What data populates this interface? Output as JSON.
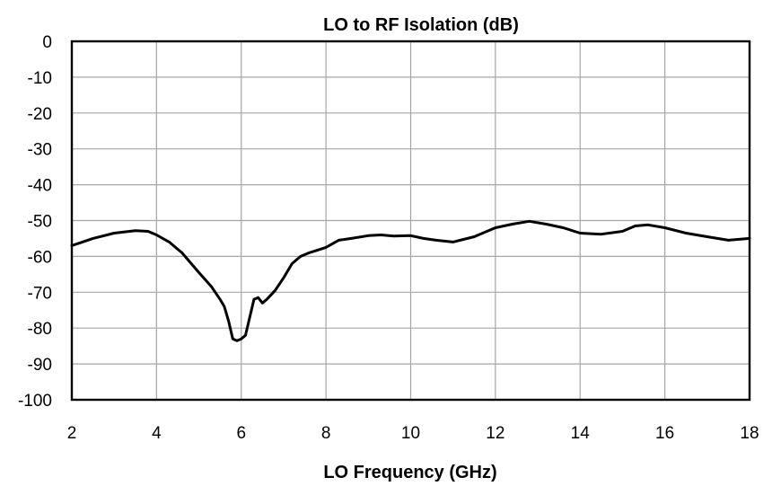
{
  "chart_data": {
    "type": "line",
    "title": "LO to RF Isolation  (dB)",
    "xlabel": "LO Frequency  (GHz)",
    "ylabel": "",
    "xlim": [
      2,
      18
    ],
    "ylim": [
      -100,
      0
    ],
    "xticks": [
      "2",
      "4",
      "6",
      "8",
      "10",
      "12",
      "14",
      "16",
      "18"
    ],
    "yticks": [
      "0",
      "-10",
      "-20",
      "-30",
      "-40",
      "-50",
      "-60",
      "-70",
      "-80",
      "-90",
      "-100"
    ],
    "grid": true,
    "legend": "none",
    "series": [
      {
        "color": "#000000",
        "x": [
          2.0,
          2.5,
          3.0,
          3.5,
          3.8,
          4.0,
          4.3,
          4.6,
          5.0,
          5.3,
          5.5,
          5.6,
          5.7,
          5.8,
          5.9,
          6.0,
          6.1,
          6.2,
          6.3,
          6.4,
          6.5,
          6.6,
          6.8,
          7.0,
          7.2,
          7.4,
          7.6,
          8.0,
          8.3,
          8.6,
          9.0,
          9.3,
          9.6,
          10.0,
          10.3,
          10.6,
          11.0,
          11.5,
          12.0,
          12.4,
          12.8,
          13.2,
          13.6,
          14.0,
          14.5,
          15.0,
          15.3,
          15.6,
          16.0,
          16.5,
          17.0,
          17.5,
          18.0
        ],
        "y": [
          -57,
          -55,
          -53.5,
          -52.8,
          -53,
          -54,
          -56,
          -59,
          -64.5,
          -68.5,
          -72,
          -74,
          -78,
          -83,
          -83.5,
          -83,
          -82,
          -77,
          -72,
          -71.5,
          -73,
          -72,
          -69.5,
          -66,
          -62,
          -60,
          -59,
          -57.5,
          -55.5,
          -55,
          -54.2,
          -54,
          -54.3,
          -54.2,
          -55,
          -55.5,
          -56,
          -54.5,
          -52,
          -51,
          -50.2,
          -51,
          -52,
          -53.5,
          -53.8,
          -53,
          -51.5,
          -51.2,
          -52,
          -53.5,
          -54.5,
          -55.5,
          -55
        ]
      }
    ]
  }
}
